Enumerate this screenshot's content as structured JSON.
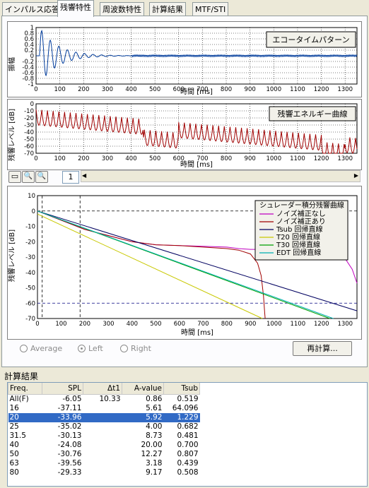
{
  "tabs": [
    "インパルス応答",
    "残響特性",
    "周波数特性",
    "計算結果",
    "MTF/STI"
  ],
  "chart1": {
    "title": "エコータイムパターン",
    "ylabel": "振幅",
    "xlabel": "時間 [ms]",
    "y_ticks": [
      "1",
      "0.8",
      "0.6",
      "0.4",
      "0.2",
      "0",
      "-0.2",
      "-0.4",
      "-0.6",
      "-0.8",
      "-1"
    ],
    "x_ticks": [
      "0",
      "100",
      "200",
      "300",
      "400",
      "500",
      "600",
      "700",
      "800",
      "900",
      "1000",
      "1100",
      "1200",
      "1300"
    ]
  },
  "chart2": {
    "title": "残響エネルギー曲線",
    "ylabel": "残響レベル [dB]",
    "xlabel": "時間 [ms]",
    "y_ticks": [
      "0",
      "-10",
      "-20",
      "-30",
      "-40",
      "-50",
      "-60",
      "-70"
    ],
    "x_ticks": [
      "0",
      "100",
      "200",
      "300",
      "400",
      "500",
      "600",
      "700",
      "800",
      "900",
      "1000",
      "1100",
      "1200",
      "1300"
    ]
  },
  "toolbar": {
    "page_value": "1"
  },
  "chart_data": {
    "type": "line",
    "xlabel": "時間 [ms]",
    "ylabel": "残響レベル [dB]",
    "xlim": [
      0,
      1350
    ],
    "ylim": [
      -70,
      10
    ],
    "x_ticks": [
      "0",
      "100",
      "200",
      "300",
      "400",
      "500",
      "600",
      "700",
      "800",
      "900",
      "1000",
      "1100",
      "1200",
      "1300"
    ],
    "y_ticks": [
      "10",
      "0",
      "-10",
      "-20",
      "-30",
      "-40",
      "-50",
      "-60",
      "-70"
    ],
    "legend_title": "シュレーダー積分残響曲線",
    "legend_position": "top-right",
    "series": [
      {
        "name": "ノイズ補正なし",
        "color": "#c000c0",
        "x": [
          0,
          100,
          200,
          300,
          400,
          500,
          600,
          700,
          800,
          850,
          900,
          950,
          1000,
          1050,
          1100,
          1150,
          1200,
          1250,
          1300,
          1330,
          1350
        ],
        "y": [
          0,
          -6,
          -12,
          -16,
          -20,
          -22,
          -22.5,
          -23,
          -23.5,
          -24.5,
          -25,
          -25,
          -26,
          -27,
          -27.5,
          -28,
          -28,
          -29,
          -31,
          -38,
          -47
        ]
      },
      {
        "name": "ノイズ補正あり",
        "color": "#a00000",
        "x": [
          0,
          100,
          200,
          300,
          400,
          500,
          600,
          700,
          800,
          850,
          900,
          930,
          945,
          955,
          960,
          962
        ],
        "y": [
          0,
          -6,
          -12,
          -16,
          -20,
          -22,
          -22.5,
          -23.5,
          -24.5,
          -25.5,
          -28,
          -34,
          -42,
          -55,
          -66,
          -70
        ]
      },
      {
        "name": "Tsub 回帰直線",
        "color": "#000060",
        "x": [
          0,
          1350
        ],
        "y": [
          0,
          -65
        ]
      },
      {
        "name": "T20 回帰直線",
        "color": "#c8c800",
        "x": [
          0,
          950
        ],
        "y": [
          -2,
          -70
        ]
      },
      {
        "name": "T30 回帰直線",
        "color": "#00a000",
        "x": [
          0,
          1235
        ],
        "y": [
          0,
          -70
        ]
      },
      {
        "name": "EDT 回帰直線",
        "color": "#00b0b0",
        "x": [
          0,
          1250
        ],
        "y": [
          0,
          -70
        ]
      }
    ]
  },
  "radios": [
    {
      "label": "Average",
      "selected": false
    },
    {
      "label": "Left",
      "selected": true
    },
    {
      "label": "Right",
      "selected": false
    }
  ],
  "buttons": {
    "recalc": "再計算..."
  },
  "results": {
    "title": "計算結果",
    "columns": [
      "Freq.",
      "SPL",
      "Δt1",
      "A-value",
      "Tsub"
    ],
    "rows": [
      [
        "All(F)",
        "-6.05",
        "10.33",
        "0.86",
        "0.519"
      ],
      [
        "16",
        "-37.11",
        "",
        "5.61",
        "64.096"
      ],
      [
        "20",
        "-33.96",
        "",
        "5.92",
        "1.229"
      ],
      [
        "25",
        "-35.02",
        "",
        "4.00",
        "0.682"
      ],
      [
        "31.5",
        "-30.13",
        "",
        "8.73",
        "0.481"
      ],
      [
        "40",
        "-24.08",
        "",
        "20.00",
        "0.700"
      ],
      [
        "50",
        "-30.76",
        "",
        "12.27",
        "0.807"
      ],
      [
        "63",
        "-39.56",
        "",
        "3.18",
        "0.439"
      ],
      [
        "80",
        "-29.33",
        "",
        "9.17",
        "0.508"
      ]
    ],
    "selected_index": 2
  }
}
